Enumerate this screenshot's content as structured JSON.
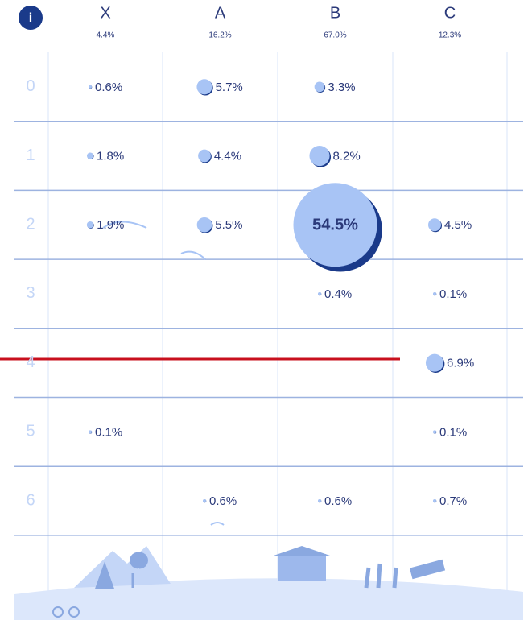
{
  "info_icon": "i",
  "columns": [
    {
      "label": "X",
      "total": "4.4%"
    },
    {
      "label": "A",
      "total": "16.2%"
    },
    {
      "label": "B",
      "total": "67.0%"
    },
    {
      "label": "C",
      "total": "12.3%"
    }
  ],
  "rows": [
    {
      "label": "0",
      "cells": [
        {
          "value": 0.6,
          "label": "0.6%"
        },
        {
          "value": 5.7,
          "label": "5.7%"
        },
        {
          "value": 3.3,
          "label": "3.3%"
        },
        null
      ]
    },
    {
      "label": "1",
      "cells": [
        {
          "value": 1.8,
          "label": "1.8%"
        },
        {
          "value": 4.4,
          "label": "4.4%"
        },
        {
          "value": 8.2,
          "label": "8.2%"
        },
        null
      ]
    },
    {
      "label": "2",
      "cells": [
        {
          "value": 1.9,
          "label": "1.9%"
        },
        {
          "value": 5.5,
          "label": "5.5%"
        },
        {
          "value": 54.5,
          "label": "54.5%"
        },
        {
          "value": 4.5,
          "label": "4.5%"
        }
      ]
    },
    {
      "label": "3",
      "cells": [
        null,
        null,
        {
          "value": 0.4,
          "label": "0.4%"
        },
        {
          "value": 0.1,
          "label": "0.1%"
        }
      ]
    },
    {
      "label": "4",
      "cells": [
        null,
        null,
        null,
        {
          "value": 6.9,
          "label": "6.9%"
        }
      ]
    },
    {
      "label": "5",
      "cells": [
        {
          "value": 0.1,
          "label": "0.1%"
        },
        null,
        null,
        {
          "value": 0.1,
          "label": "0.1%"
        }
      ]
    },
    {
      "label": "6",
      "cells": [
        null,
        {
          "value": 0.6,
          "label": "0.6%"
        },
        {
          "value": 0.6,
          "label": "0.6%"
        },
        {
          "value": 0.7,
          "label": "0.7%"
        }
      ]
    }
  ]
}
